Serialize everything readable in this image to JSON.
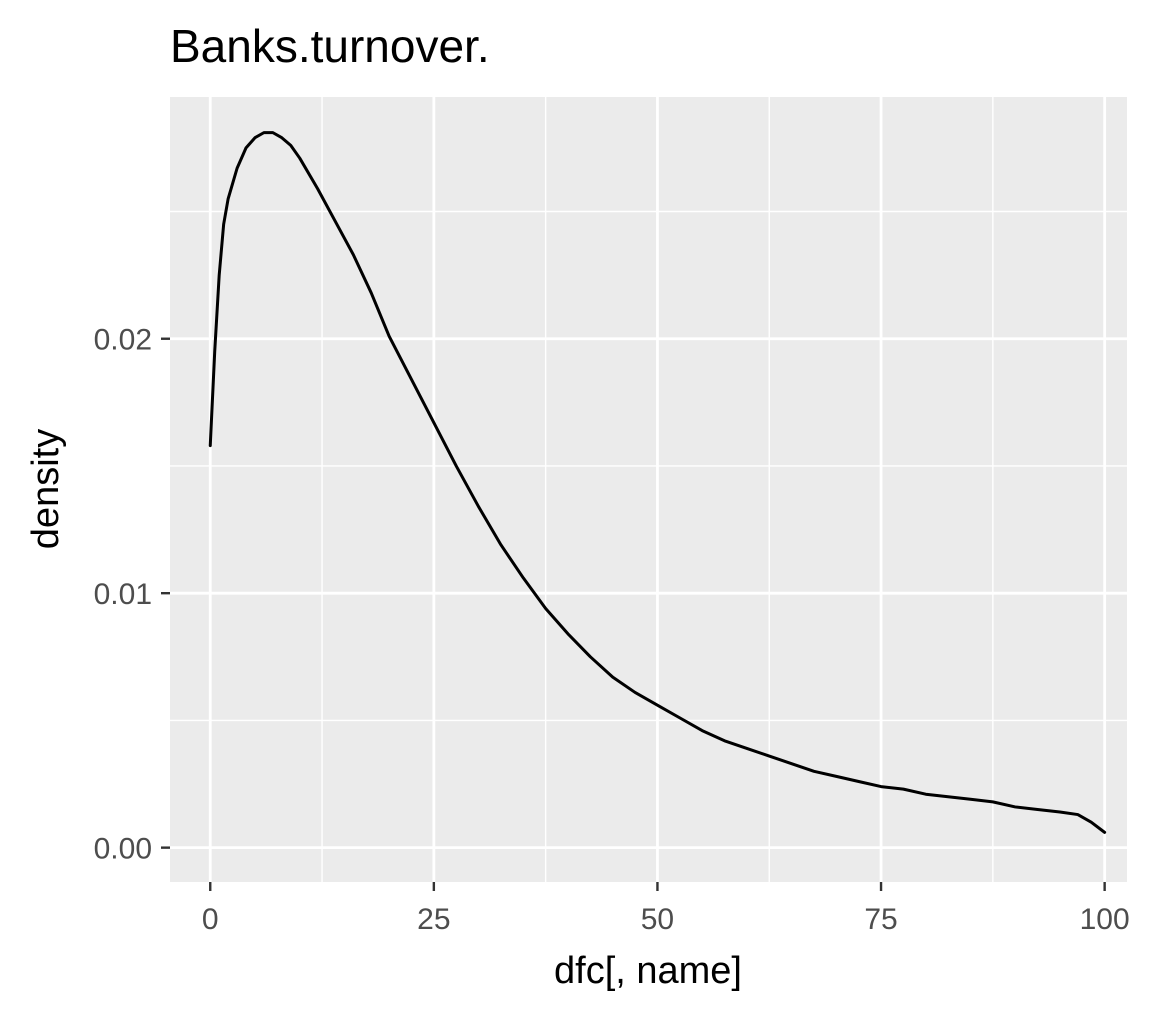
{
  "chart_data": {
    "type": "line",
    "title": "Banks.turnover.",
    "xlabel": "dfc[, name]",
    "ylabel": "density",
    "xlim": [
      -4.5,
      102.5
    ],
    "ylim": [
      -0.00135,
      0.0295
    ],
    "x_ticks": [
      0,
      25,
      50,
      75,
      100
    ],
    "x_tick_labels": [
      "0",
      "25",
      "50",
      "75",
      "100"
    ],
    "x_minor_ticks": [
      12.5,
      37.5,
      62.5,
      87.5
    ],
    "y_ticks": [
      0,
      0.01,
      0.02
    ],
    "y_tick_labels": [
      "0.00",
      "0.01",
      "0.02"
    ],
    "y_minor_ticks": [
      0.005,
      0.015,
      0.025
    ],
    "grid": true,
    "panel_color": "#ebebeb",
    "grid_color": "#ffffff",
    "line_color": "#000000",
    "series": [
      {
        "x": [
          0,
          0.5,
          1,
          1.5,
          2,
          3,
          4,
          5,
          6,
          7,
          8,
          9,
          10,
          12,
          14,
          16,
          18,
          20,
          22.5,
          25,
          27.5,
          30,
          32.5,
          35,
          37.5,
          40,
          42.5,
          45,
          47.5,
          50,
          52.5,
          55,
          57.5,
          60,
          62.5,
          65,
          67.5,
          70,
          72.5,
          75,
          77.5,
          80,
          82.5,
          85,
          87.5,
          90,
          92.5,
          95,
          97,
          98.5,
          100
        ],
        "y": [
          0.0158,
          0.0195,
          0.0225,
          0.0245,
          0.0255,
          0.0267,
          0.0275,
          0.0279,
          0.0281,
          0.0281,
          0.0279,
          0.0276,
          0.0271,
          0.0259,
          0.0246,
          0.0233,
          0.0218,
          0.0201,
          0.0184,
          0.0167,
          0.015,
          0.0134,
          0.0119,
          0.0106,
          0.0094,
          0.0084,
          0.0075,
          0.0067,
          0.0061,
          0.0056,
          0.0051,
          0.0046,
          0.0042,
          0.0039,
          0.0036,
          0.0033,
          0.003,
          0.0028,
          0.0026,
          0.0024,
          0.0023,
          0.0021,
          0.002,
          0.0019,
          0.0018,
          0.0016,
          0.0015,
          0.0014,
          0.0013,
          0.001,
          0.0006
        ]
      }
    ]
  }
}
